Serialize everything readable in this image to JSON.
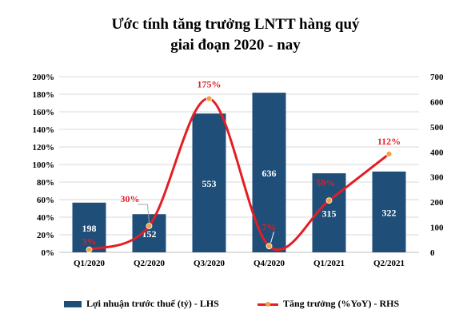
{
  "title_line1": "Ước tính  tăng trưởng LNTT hàng quý",
  "title_line2": "giai đoạn 2020 - nay",
  "colors": {
    "bar": "#1f4e79",
    "line": "#e31e24",
    "marker": "#f4a142",
    "grid": "#d9d9d9"
  },
  "chart_data": {
    "type": "bar",
    "title": "Ước tính  tăng trưởng LNTT hàng quý giai đoạn 2020 - nay",
    "categories": [
      "Q1/2020",
      "Q2/2020",
      "Q3/2020",
      "Q4/2020",
      "Q1/2021",
      "Q2/2021"
    ],
    "left_axis": {
      "ylim": [
        0,
        200
      ],
      "ticks": [
        "0%",
        "20%",
        "40%",
        "60%",
        "80%",
        "100%",
        "120%",
        "140%",
        "160%",
        "180%",
        "200%"
      ]
    },
    "right_axis": {
      "ylim": [
        0,
        700
      ],
      "ticks": [
        "0",
        "100",
        "200",
        "300",
        "400",
        "500",
        "600",
        "700"
      ]
    },
    "series": [
      {
        "name": "Lợi nhuận  trước thuế (tỷ)  - LHS",
        "type": "bar",
        "values": [
          198,
          152,
          553,
          636,
          315,
          322
        ],
        "labels": [
          "198",
          "152",
          "553",
          "636",
          "315",
          "322"
        ]
      },
      {
        "name": "Tăng trưởng (%YoY)  - RHS",
        "type": "line",
        "values": [
          3,
          30,
          175,
          7,
          59,
          112
        ],
        "labels": [
          "3%",
          "30%",
          "175%",
          "7%",
          "59%",
          "112%"
        ]
      }
    ],
    "grid": true,
    "legend": "bottom"
  }
}
